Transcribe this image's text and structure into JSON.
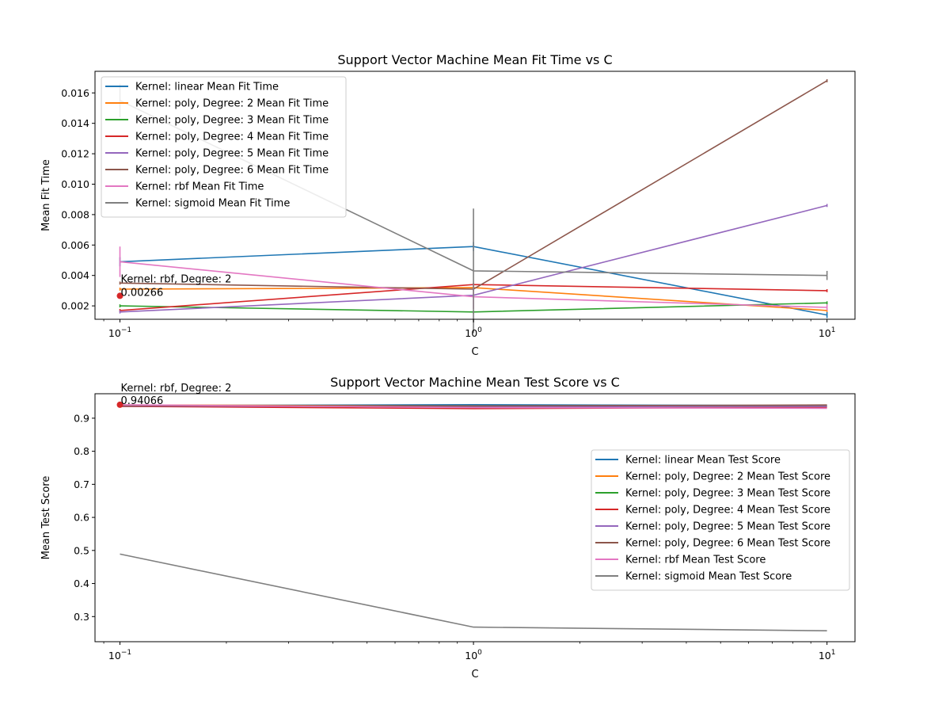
{
  "chart_data": [
    {
      "type": "line",
      "title": "Support Vector Machine Mean Fit Time vs C",
      "xlabel": "C",
      "ylabel": "Mean Fit Time",
      "xscale": "log",
      "x": [
        0.1,
        1,
        10
      ],
      "xlim": [
        0.085,
        12
      ],
      "ylim": [
        0.00112,
        0.01742
      ],
      "x_ticks": [
        0.1,
        1,
        10
      ],
      "x_tick_labels": [
        {
          "base": "10",
          "exp": "−1"
        },
        {
          "base": "10",
          "exp": "0"
        },
        {
          "base": "10",
          "exp": "1"
        }
      ],
      "y_ticks": [
        0.002,
        0.004,
        0.006,
        0.008,
        0.01,
        0.012,
        0.014,
        0.016
      ],
      "y_tick_labels": [
        "0.002",
        "0.004",
        "0.006",
        "0.008",
        "0.010",
        "0.012",
        "0.014",
        "0.016"
      ],
      "grid": false,
      "legend_position": "upper-left",
      "series": [
        {
          "name": "Kernel: linear Mean Fit Time",
          "color": "#1f77b4",
          "values": [
            0.0049,
            0.0059,
            0.0014
          ],
          "errors": [
            0.0003,
            0.0003,
            0.0002
          ]
        },
        {
          "name": "Kernel: poly, Degree: 2 Mean Fit Time",
          "color": "#ff7f0e",
          "values": [
            0.0031,
            0.0032,
            0.0017
          ],
          "errors": [
            0.0001,
            0.0001,
            0.0001
          ]
        },
        {
          "name": "Kernel: poly, Degree: 3 Mean Fit Time",
          "color": "#2ca02c",
          "values": [
            0.002,
            0.0016,
            0.0022
          ],
          "errors": [
            0.0001,
            0.0001,
            0.0001
          ]
        },
        {
          "name": "Kernel: poly, Degree: 4 Mean Fit Time",
          "color": "#d62728",
          "values": [
            0.0017,
            0.0034,
            0.003
          ],
          "errors": [
            0.0001,
            0.0001,
            0.0001
          ]
        },
        {
          "name": "Kernel: poly, Degree: 5 Mean Fit Time",
          "color": "#9467bd",
          "values": [
            0.0016,
            0.0027,
            0.0086
          ],
          "errors": [
            0.0001,
            0.0001,
            0.0001
          ]
        },
        {
          "name": "Kernel: poly, Degree: 6 Mean Fit Time",
          "color": "#8c564b",
          "values": [
            0.0035,
            0.0031,
            0.0168
          ],
          "errors": [
            0.0001,
            0.0001,
            0.0001
          ]
        },
        {
          "name": "Kernel: rbf Mean Fit Time",
          "color": "#e377c2",
          "values": [
            0.0049,
            0.0026,
            0.0019
          ],
          "errors": [
            0.001,
            0.0008,
            0.0002
          ]
        },
        {
          "name": "Kernel: sigmoid Mean Fit Time",
          "color": "#7f7f7f",
          "values": [
            0.0155,
            0.0043,
            0.004
          ],
          "errors": [
            0.0011,
            0.0041,
            0.0003
          ]
        }
      ],
      "highlight": {
        "x": 0.1,
        "y": 0.00266,
        "color": "#d62728",
        "label_line1": "Kernel: rbf, Degree: 2",
        "label_line2": "0.00266"
      }
    },
    {
      "type": "line",
      "title": "Support Vector Machine Mean Test Score vs C",
      "xlabel": "C",
      "ylabel": "Mean Test Score",
      "xscale": "log",
      "x": [
        0.1,
        1,
        10
      ],
      "xlim": [
        0.085,
        12
      ],
      "ylim": [
        0.224,
        0.974
      ],
      "x_ticks": [
        0.1,
        1,
        10
      ],
      "x_tick_labels": [
        {
          "base": "10",
          "exp": "−1"
        },
        {
          "base": "10",
          "exp": "0"
        },
        {
          "base": "10",
          "exp": "1"
        }
      ],
      "y_ticks": [
        0.3,
        0.4,
        0.5,
        0.6,
        0.7,
        0.8,
        0.9
      ],
      "y_tick_labels": [
        "0.3",
        "0.4",
        "0.5",
        "0.6",
        "0.7",
        "0.8",
        "0.9"
      ],
      "grid": false,
      "legend_position": "center-right",
      "series": [
        {
          "name": "Kernel: linear Mean Test Score",
          "color": "#1f77b4",
          "values": [
            0.938,
            0.941,
            0.938
          ]
        },
        {
          "name": "Kernel: poly, Degree: 2 Mean Test Score",
          "color": "#ff7f0e",
          "values": [
            0.94,
            0.937,
            0.934
          ]
        },
        {
          "name": "Kernel: poly, Degree: 3 Mean Test Score",
          "color": "#2ca02c",
          "values": [
            0.936,
            0.936,
            0.937
          ]
        },
        {
          "name": "Kernel: poly, Degree: 4 Mean Test Score",
          "color": "#d62728",
          "values": [
            0.936,
            0.929,
            0.933
          ]
        },
        {
          "name": "Kernel: poly, Degree: 5 Mean Test Score",
          "color": "#9467bd",
          "values": [
            0.937,
            0.935,
            0.936
          ]
        },
        {
          "name": "Kernel: poly, Degree: 6 Mean Test Score",
          "color": "#8c564b",
          "values": [
            0.938,
            0.937,
            0.94
          ]
        },
        {
          "name": "Kernel: rbf Mean Test Score",
          "color": "#e377c2",
          "values": [
            0.94066,
            0.932,
            0.93
          ]
        },
        {
          "name": "Kernel: sigmoid Mean Test Score",
          "color": "#7f7f7f",
          "values": [
            0.489,
            0.268,
            0.257
          ]
        }
      ],
      "highlight": {
        "x": 0.1,
        "y": 0.94066,
        "color": "#d62728",
        "label_line1": "Kernel: rbf, Degree: 2",
        "label_line2": "0.94066"
      }
    }
  ]
}
